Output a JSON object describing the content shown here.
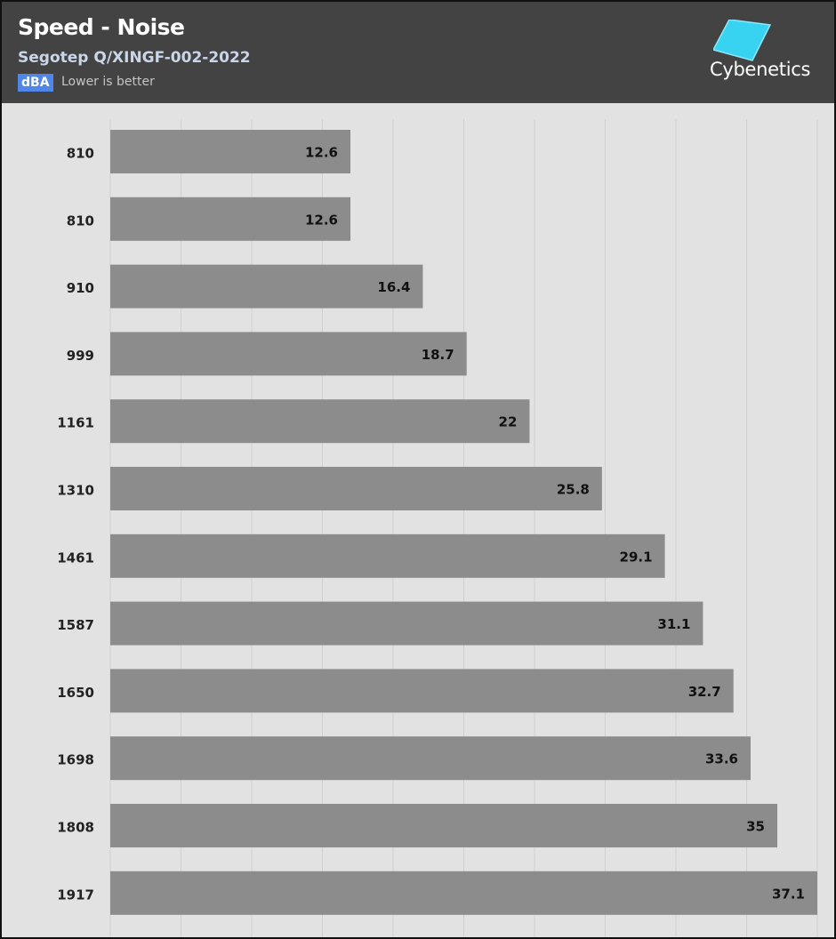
{
  "header": {
    "title": "Speed - Noise",
    "subtitle": "Segotep Q/XINGF-002-2022",
    "unit_badge": "dBA",
    "note": "Lower is better",
    "logo_text": "Cybenetics",
    "logo_icon": "cybenetics-logo-icon"
  },
  "colors": {
    "header_bg": "#434343",
    "plot_bg": "#e2e2e2",
    "bar": "#8c8c8c",
    "badge": "#4f86e8",
    "logo": "#39d3f2"
  },
  "chart_data": {
    "type": "bar",
    "orientation": "horizontal",
    "title": "Speed - Noise",
    "subtitle": "Segotep Q/XINGF-002-2022",
    "unit": "dBA",
    "categories": [
      "810",
      "810",
      "910",
      "999",
      "1161",
      "1310",
      "1461",
      "1587",
      "1650",
      "1698",
      "1808",
      "1917"
    ],
    "values": [
      12.6,
      12.6,
      16.4,
      18.7,
      22,
      25.8,
      29.1,
      31.1,
      32.7,
      33.6,
      35,
      37.1
    ],
    "xlim": [
      0,
      37.1
    ],
    "grid": true
  }
}
